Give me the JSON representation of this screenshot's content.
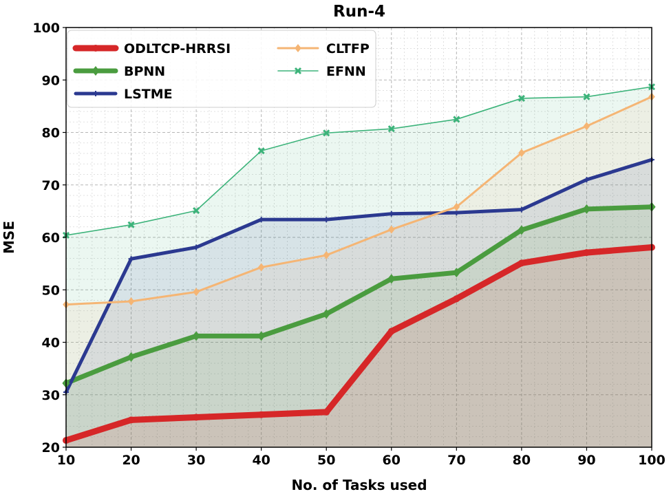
{
  "chart_data": {
    "type": "line",
    "title": "Run-4",
    "xlabel": "No. of Tasks used",
    "ylabel": "MSE",
    "x": [
      10,
      20,
      30,
      40,
      50,
      60,
      70,
      80,
      90,
      100
    ],
    "xlim": [
      10,
      100
    ],
    "ylim": [
      20,
      100
    ],
    "xticks": [
      10,
      20,
      30,
      40,
      50,
      60,
      70,
      80,
      90,
      100
    ],
    "yticks": [
      20,
      30,
      40,
      50,
      60,
      70,
      80,
      90,
      100
    ],
    "grid": true,
    "legend_position": "top-left",
    "area_fill": true,
    "series": [
      {
        "name": "ODLTCP-HRRSI",
        "color": "#d62728",
        "marker": "circle",
        "values": [
          21.3,
          25.2,
          25.7,
          26.2,
          26.7,
          42.1,
          48.3,
          55.1,
          57.1,
          58.1
        ]
      },
      {
        "name": "BPNN",
        "color": "#4a9c3f",
        "marker": "diamond",
        "values": [
          32.2,
          37.2,
          41.2,
          41.2,
          45.4,
          52.1,
          53.3,
          61.4,
          65.4,
          65.8
        ]
      },
      {
        "name": "LSTME",
        "color": "#2b3990",
        "marker": "plus",
        "values": [
          30.5,
          55.9,
          58.1,
          63.4,
          63.4,
          64.5,
          64.7,
          65.3,
          71.0,
          74.8
        ]
      },
      {
        "name": "CLTFP",
        "color": "#f5b574",
        "marker": "diamond",
        "values": [
          47.2,
          47.8,
          49.6,
          54.3,
          56.6,
          61.5,
          65.8,
          76.1,
          81.2,
          86.8
        ]
      },
      {
        "name": "EFNN",
        "color": "#3cb37a",
        "marker": "x",
        "values": [
          60.4,
          62.4,
          65.1,
          76.5,
          79.9,
          80.7,
          82.5,
          86.5,
          86.8,
          88.7
        ]
      }
    ],
    "legend_order": [
      "ODLTCP-HRRSI",
      "BPNN",
      "LSTME",
      "CLTFP",
      "EFNN"
    ]
  }
}
